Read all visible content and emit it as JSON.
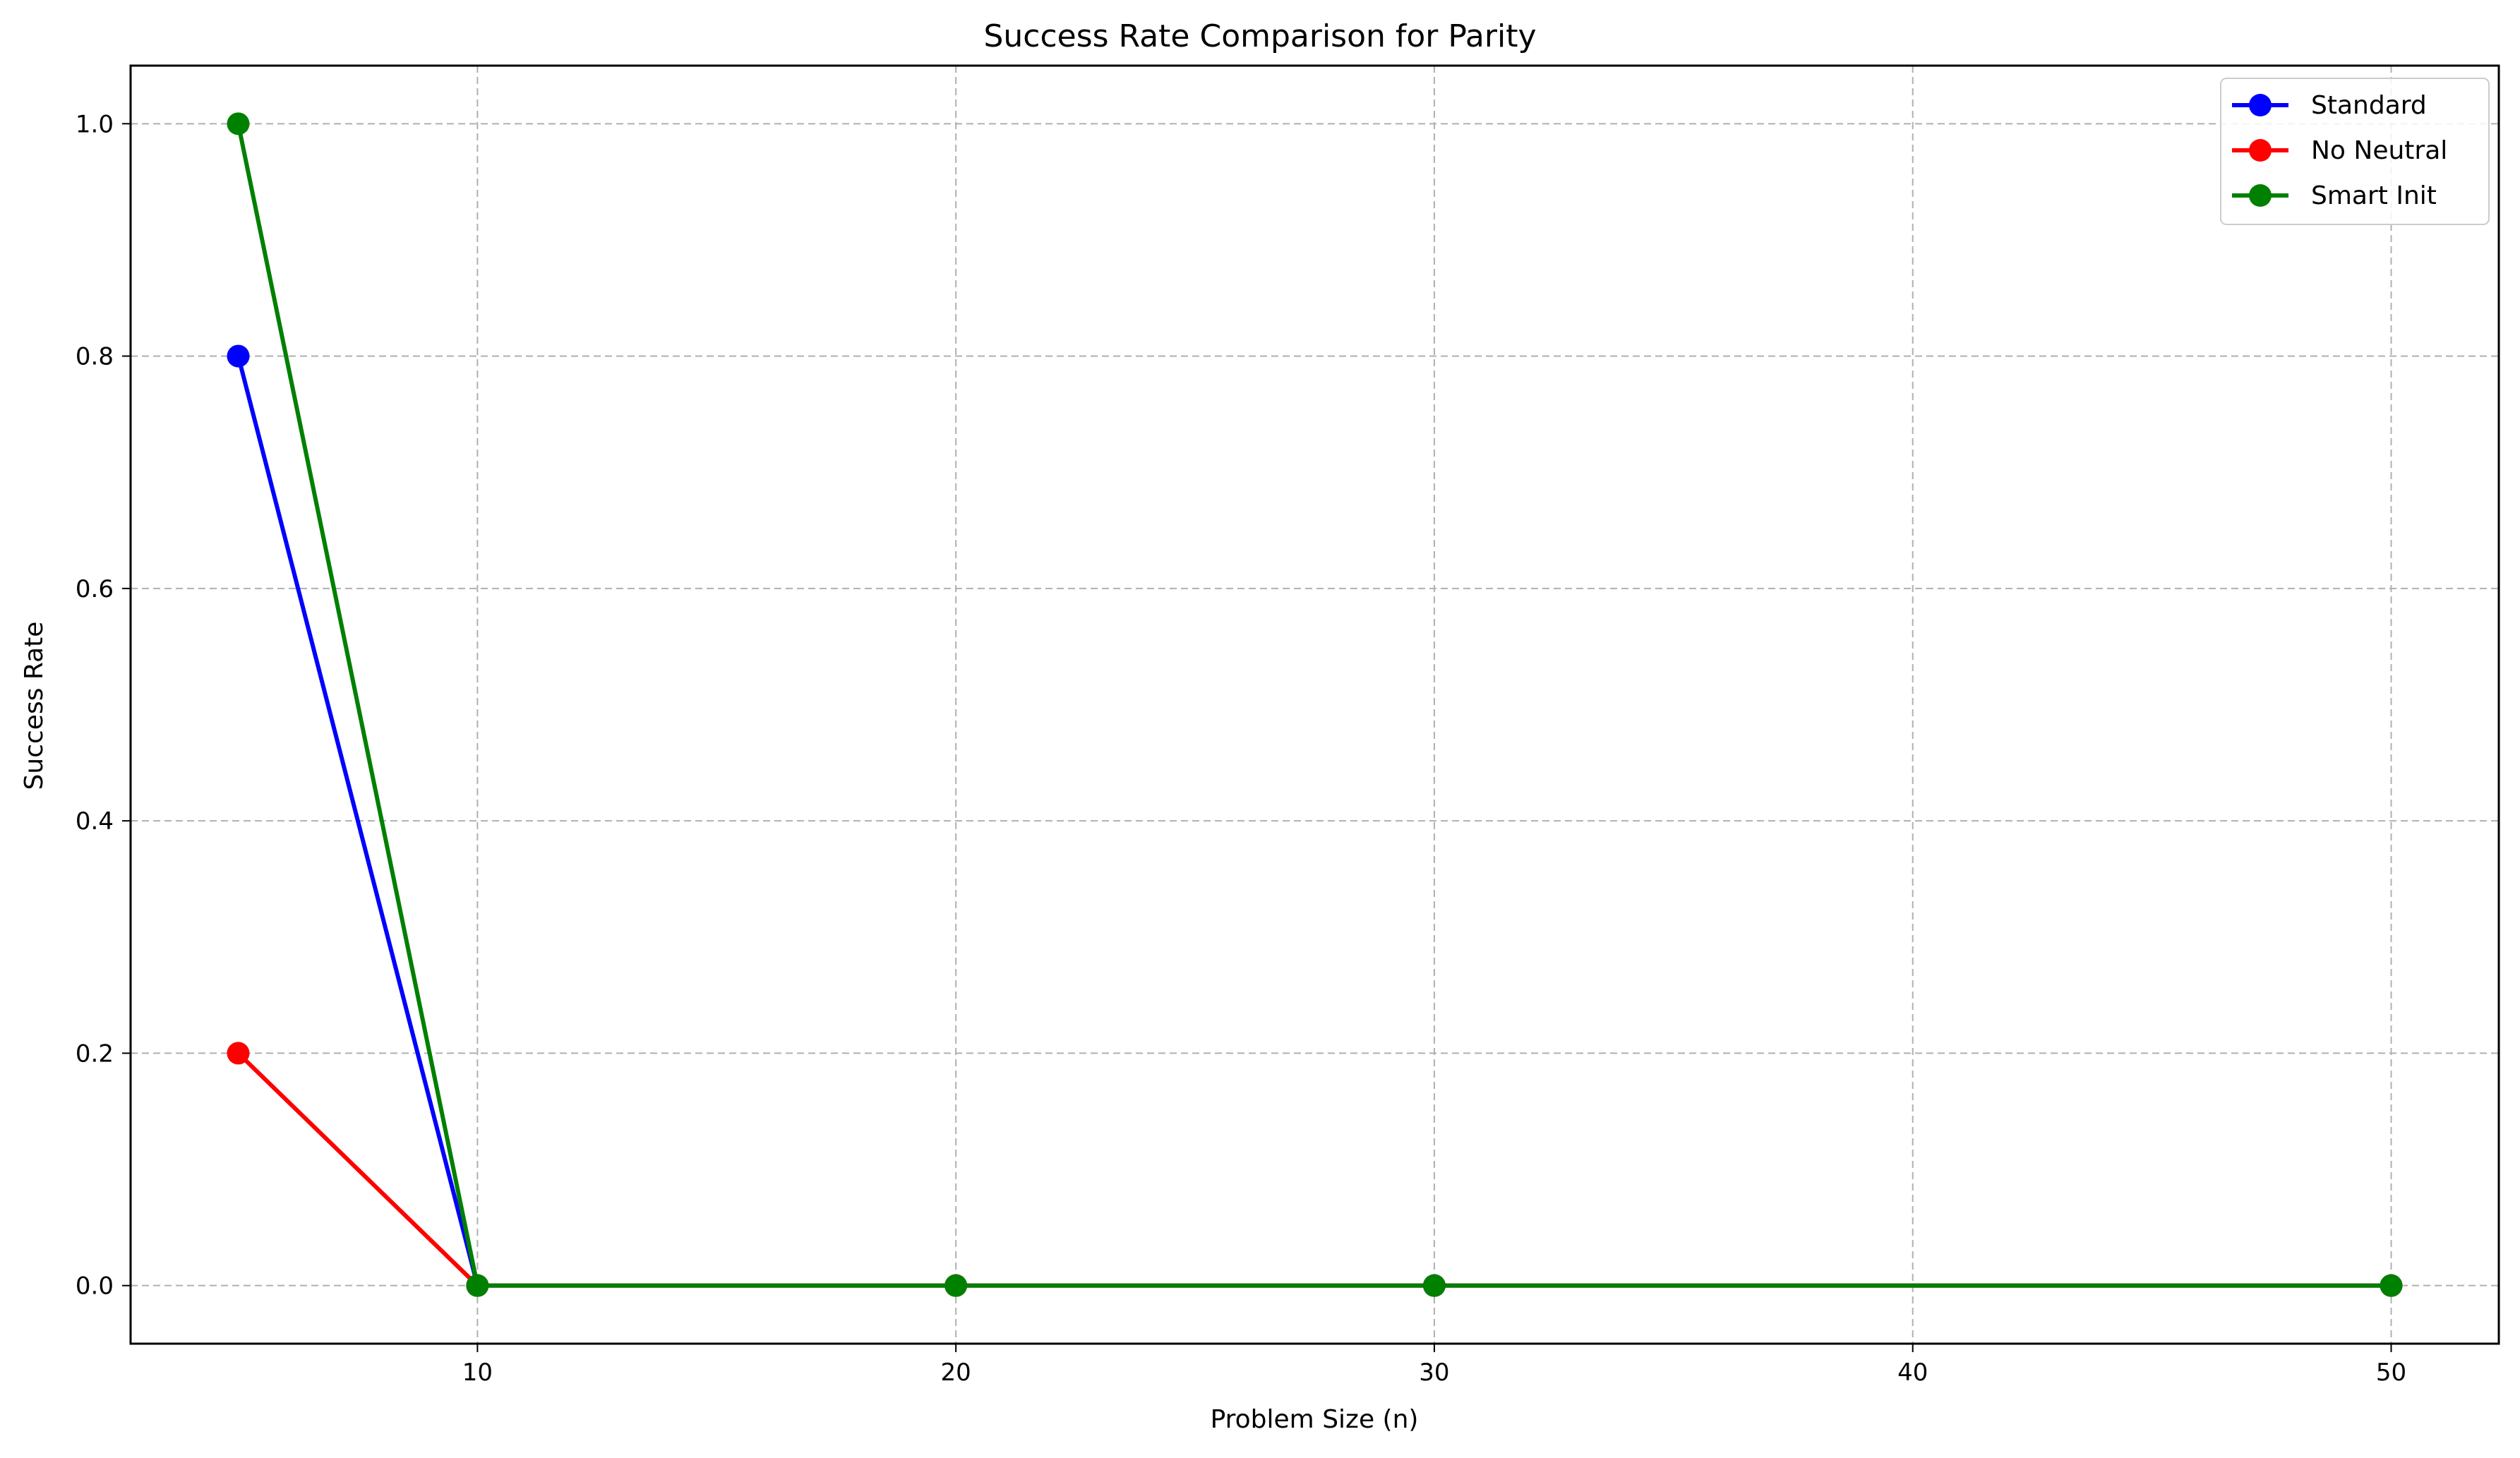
{
  "chart_data": {
    "type": "line",
    "title": "Success Rate Comparison for Parity",
    "xlabel": "Problem Size (n)",
    "ylabel": "Success Rate",
    "x": [
      5,
      10,
      20,
      30,
      50
    ],
    "xlim": [
      2.75,
      52.25
    ],
    "ylim": [
      -0.05,
      1.05
    ],
    "xticks": [
      10,
      20,
      30,
      40,
      50
    ],
    "yticks": [
      "0.0",
      "0.2",
      "0.4",
      "0.6",
      "0.8",
      "1.0"
    ],
    "grid": true,
    "legend_position": "top-right",
    "series": [
      {
        "name": "Standard",
        "color": "#0000ff",
        "values": [
          0.8,
          0.0,
          0.0,
          0.0,
          0.0
        ]
      },
      {
        "name": "No Neutral",
        "color": "#ff0000",
        "values": [
          0.2,
          0.0,
          0.0,
          0.0,
          0.0
        ]
      },
      {
        "name": "Smart Init",
        "color": "#008000",
        "values": [
          1.0,
          0.0,
          0.0,
          0.0,
          0.0
        ]
      }
    ]
  }
}
